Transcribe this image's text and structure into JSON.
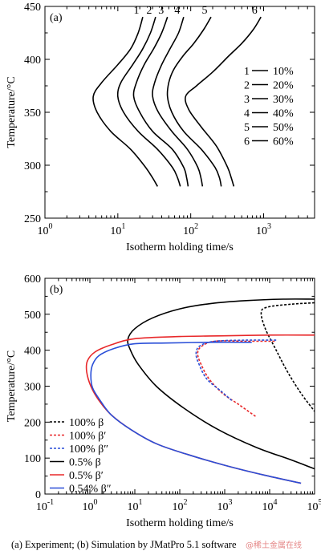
{
  "chart_data": [
    {
      "type": "line",
      "panel_label": "(a)",
      "xlabel": "Isotherm holding time/s",
      "ylabel": "Temperature/°C",
      "x_scale": "log",
      "xlim": [
        1,
        5000
      ],
      "ylim": [
        250,
        450
      ],
      "x_ticks": [
        "10^0",
        "10^1",
        "10^2",
        "10^3"
      ],
      "y_ticks": [
        250,
        300,
        350,
        400,
        450
      ],
      "legend": {
        "placement": "right",
        "entries": [
          {
            "num": "1",
            "label": "10%"
          },
          {
            "num": "2",
            "label": "20%"
          },
          {
            "num": "3",
            "label": "30%"
          },
          {
            "num": "4",
            "label": "40%"
          },
          {
            "num": "5",
            "label": "50%"
          },
          {
            "num": "6",
            "label": "60%"
          }
        ]
      },
      "series": [
        {
          "name": "1",
          "color": "#000000",
          "points": [
            [
              22,
              440
            ],
            [
              19,
              425
            ],
            [
              15,
              410
            ],
            [
              10,
              395
            ],
            [
              6,
              378
            ],
            [
              4.6,
              365
            ],
            [
              5.2,
              350
            ],
            [
              8,
              332
            ],
            [
              15,
              315
            ],
            [
              24,
              298
            ],
            [
              30,
              288
            ],
            [
              35,
              280
            ]
          ]
        },
        {
          "name": "2",
          "color": "#000000",
          "points": [
            [
              33,
              440
            ],
            [
              28,
              425
            ],
            [
              22,
              410
            ],
            [
              16,
              395
            ],
            [
              11,
              378
            ],
            [
              10,
              365
            ],
            [
              12,
              350
            ],
            [
              19,
              332
            ],
            [
              35,
              315
            ],
            [
              56,
              298
            ],
            [
              66,
              288
            ],
            [
              72,
              280
            ]
          ]
        },
        {
          "name": "3",
          "color": "#000000",
          "points": [
            [
              48,
              440
            ],
            [
              40,
              425
            ],
            [
              31,
              410
            ],
            [
              23,
              395
            ],
            [
              18,
              378
            ],
            [
              16.5,
              365
            ],
            [
              20,
              350
            ],
            [
              30,
              332
            ],
            [
              56,
              315
            ],
            [
              80,
              298
            ],
            [
              88,
              288
            ],
            [
              92,
              280
            ]
          ]
        },
        {
          "name": "4",
          "color": "#000000",
          "points": [
            [
              80,
              440
            ],
            [
              68,
              425
            ],
            [
              52,
              410
            ],
            [
              40,
              395
            ],
            [
              32,
              378
            ],
            [
              30,
              365
            ],
            [
              36,
              350
            ],
            [
              55,
              332
            ],
            [
              90,
              315
            ],
            [
              125,
              298
            ],
            [
              138,
              288
            ],
            [
              145,
              280
            ]
          ]
        },
        {
          "name": "5",
          "color": "#000000",
          "points": [
            [
              190,
              440
            ],
            [
              150,
              428
            ],
            [
              110,
              415
            ],
            [
              78,
              403
            ],
            [
              58,
              390
            ],
            [
              50,
              378
            ],
            [
              48,
              365
            ],
            [
              55,
              350
            ],
            [
              80,
              332
            ],
            [
              140,
              315
            ],
            [
              215,
              298
            ],
            [
              248,
              288
            ],
            [
              262,
              280
            ]
          ]
        },
        {
          "name": "6",
          "color": "#000000",
          "points": [
            [
              920,
              440
            ],
            [
              720,
              428
            ],
            [
              500,
              415
            ],
            [
              330,
              403
            ],
            [
              200,
              388
            ],
            [
              120,
              375
            ],
            [
              85,
              365
            ],
            [
              95,
              352
            ],
            [
              140,
              336
            ],
            [
              225,
              318
            ],
            [
              320,
              298
            ],
            [
              360,
              288
            ],
            [
              390,
              280
            ]
          ]
        }
      ]
    },
    {
      "type": "line",
      "panel_label": "(b)",
      "xlabel": "Isotherm holding time/s",
      "ylabel": "Temperature/°C",
      "x_scale": "log",
      "xlim": [
        0.1,
        100000
      ],
      "ylim": [
        0,
        600
      ],
      "x_ticks": [
        "10^-1",
        "10^0",
        "10^1",
        "10^2",
        "10^3",
        "10^4",
        "10^5"
      ],
      "y_ticks": [
        0,
        100,
        200,
        300,
        400,
        500,
        600
      ],
      "legend": {
        "placement": "bottom-left",
        "entries": [
          {
            "label": "100% β",
            "color": "#000000",
            "dashed": true
          },
          {
            "label": "100% β′",
            "color": "#e8282a",
            "dashed": true
          },
          {
            "label": "100% β″",
            "color": "#2a4fd8",
            "dashed": true
          },
          {
            "label": "0.5% β",
            "color": "#000000",
            "dashed": false
          },
          {
            "label": "0.5% β′",
            "color": "#e8282a",
            "dashed": false
          },
          {
            "label": "0.54% β″",
            "color": "#2a4fd8",
            "dashed": false
          }
        ]
      },
      "series": [
        {
          "name": "100% β",
          "color": "#000000",
          "dashed": true,
          "points": [
            [
              100000,
              532
            ],
            [
              30000,
              528
            ],
            [
              9000,
              520
            ],
            [
              6500,
              505
            ],
            [
              8000,
              460
            ],
            [
              14000,
              400
            ],
            [
              25000,
              340
            ],
            [
              50000,
              280
            ],
            [
              100000,
              230
            ]
          ]
        },
        {
          "name": "100% β′",
          "color": "#e8282a",
          "dashed": true,
          "points": [
            [
              13000,
              425
            ],
            [
              3000,
              425
            ],
            [
              600,
              425
            ],
            [
              300,
              410
            ],
            [
              250,
              390
            ],
            [
              300,
              360
            ],
            [
              450,
              320
            ],
            [
              900,
              280
            ],
            [
              2000,
              250
            ],
            [
              5000,
              215
            ]
          ]
        },
        {
          "name": "100% β″",
          "color": "#2a4fd8",
          "dashed": true,
          "points": [
            [
              14000,
              428
            ],
            [
              3000,
              428
            ],
            [
              600,
              425
            ],
            [
              280,
              412
            ],
            [
              230,
              390
            ],
            [
              270,
              360
            ],
            [
              400,
              320
            ],
            [
              850,
              285
            ],
            [
              1500,
              258
            ]
          ]
        },
        {
          "name": "0.5% β",
          "color": "#000000",
          "dashed": false,
          "points": [
            [
              100000,
              542
            ],
            [
              20000,
              542
            ],
            [
              3000,
              538
            ],
            [
              500,
              530
            ],
            [
              100,
              515
            ],
            [
              25,
              490
            ],
            [
              10,
              460
            ],
            [
              7,
              430
            ],
            [
              8,
              400
            ],
            [
              12,
              360
            ],
            [
              30,
              300
            ],
            [
              120,
              240
            ],
            [
              700,
              180
            ],
            [
              5000,
              130
            ],
            [
              30000,
              95
            ],
            [
              100000,
              70
            ]
          ]
        },
        {
          "name": "0.5% β′",
          "color": "#e8282a",
          "dashed": false,
          "points": [
            [
              100000,
              442
            ],
            [
              10000,
              442
            ],
            [
              1000,
              440
            ],
            [
              100,
              438
            ],
            [
              10,
              432
            ],
            [
              3,
              415
            ],
            [
              1.3,
              395
            ],
            [
              0.88,
              370
            ],
            [
              0.85,
              340
            ],
            [
              1.05,
              300
            ],
            [
              1.6,
              260
            ],
            [
              3,
              220
            ],
            [
              8,
              180
            ],
            [
              30,
              140
            ],
            [
              150,
              110
            ],
            [
              1000,
              80
            ],
            [
              8000,
              52
            ],
            [
              50000,
              30
            ]
          ]
        },
        {
          "name": "0.54% β″",
          "color": "#2a4fd8",
          "dashed": false,
          "points": [
            [
              4000,
              422
            ],
            [
              500,
              422
            ],
            [
              50,
              420
            ],
            [
              10,
              418
            ],
            [
              3.5,
              405
            ],
            [
              1.6,
              385
            ],
            [
              1.15,
              360
            ],
            [
              1.05,
              330
            ],
            [
              1.15,
              295
            ],
            [
              1.7,
              260
            ],
            [
              3,
              220
            ],
            [
              8,
              180
            ],
            [
              30,
              140
            ],
            [
              150,
              110
            ],
            [
              1000,
              80
            ],
            [
              8000,
              52
            ],
            [
              50000,
              30
            ]
          ]
        }
      ]
    }
  ],
  "caption": "(a)    Experiment; (b) Simulation by JMatPro 5.1 software",
  "watermark": "@稀土金属在线"
}
